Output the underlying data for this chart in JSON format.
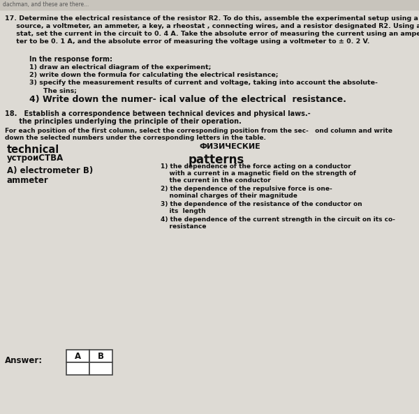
{
  "bg_color": "#dddad4",
  "text_color": "#111111",
  "q17_lines": [
    "17. Determine the electrical resistance of the resistor R2. To do this, assemble the experimental setup using a current",
    "     source, a voltmeter, an ammeter, a key, a rheostat , connecting wires, and a resistor designated R2. Using a rheo-",
    "     stat, set the current in the circuit to 0. 4 A. Take the absolute error of measuring the current using an ampere me-",
    "     ter to be 0. 1 A, and the absolute error of measuring the voltage using a voltmeter to ± 0. 2 V."
  ],
  "response_label": "In the response form:",
  "response_items": [
    "1) draw an electrical diagram of the experiment;",
    "2) write down the formula for calculating the electrical resistance;",
    "3) specify the measurement results of current and voltage, taking into account the absolute-",
    "The sins;",
    "4) Write down the numer- ical value of the electrical  resistance."
  ],
  "q18_lines": [
    "18.   Establish a correspondence between technical devices and physical laws.-",
    "      the principles underlying the principle of their operation."
  ],
  "instr_lines": [
    "For each position of the first column, select the corresponding position from the sec-   ond column and write",
    "down the selected numbers under the corresponding letters in the table."
  ],
  "col1_title": "technical",
  "col1_subtitle": "устроиСТВА",
  "col1_item1": "A) electrometer B)",
  "col1_item2": "ammeter",
  "col2_title_ru": "ФИЗИЧЕСКИЕ",
  "col2_title_en": "patterns",
  "col2_items": [
    [
      "1) the dependence of the force acting on a conductor",
      "    with a current in a magnetic field on the strength of",
      "    the current in the conductor"
    ],
    [
      "2) the dependence of the repulsive force is one-",
      "    nominal charges of their magnitude"
    ],
    [
      "3) the dependence of the resistance of the conductor on",
      "    its  length"
    ],
    [
      "4) the dependence of the current strength in the circuit on its co-",
      "    resistance"
    ]
  ],
  "answer_label": "Answer:",
  "answer_cols": [
    "A",
    "B"
  ],
  "top_bar_color": "#c8c4bc",
  "top_text": "dachman, and these are there..."
}
